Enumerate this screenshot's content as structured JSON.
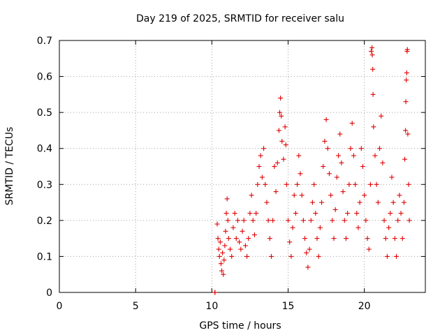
{
  "chart_data": {
    "type": "scatter",
    "title": "Day 219 of 2025, SRMTID for receiver salu",
    "xlabel": "GPS time / hours",
    "ylabel": "SRMTID / TECUs",
    "xlim": [
      0,
      24
    ],
    "ylim": [
      0,
      0.7
    ],
    "xticks": [
      0,
      5,
      10,
      15,
      20
    ],
    "xtick_labels": [
      "0",
      "5",
      "10",
      "15",
      "20"
    ],
    "yticks": [
      0,
      0.1,
      0.2,
      0.3,
      0.4,
      0.5,
      0.6,
      0.7
    ],
    "ytick_labels": [
      "0",
      "0.1",
      "0.2",
      "0.3",
      "0.4",
      "0.5",
      "0.6",
      "0.7"
    ],
    "grid": true,
    "marker": "+",
    "color": "#e00000",
    "series": [
      {
        "name": "SRMTID",
        "points": [
          [
            10.2,
            0.0
          ],
          [
            10.2,
            0.0
          ],
          [
            10.35,
            0.19
          ],
          [
            10.4,
            0.15
          ],
          [
            10.45,
            0.12
          ],
          [
            10.5,
            0.1
          ],
          [
            10.55,
            0.14
          ],
          [
            10.6,
            0.08
          ],
          [
            10.65,
            0.06
          ],
          [
            10.7,
            0.11
          ],
          [
            10.75,
            0.05
          ],
          [
            10.8,
            0.09
          ],
          [
            10.85,
            0.13
          ],
          [
            10.9,
            0.17
          ],
          [
            10.95,
            0.22
          ],
          [
            11.0,
            0.26
          ],
          [
            11.05,
            0.2
          ],
          [
            11.1,
            0.15
          ],
          [
            11.2,
            0.12
          ],
          [
            11.3,
            0.1
          ],
          [
            11.4,
            0.18
          ],
          [
            11.5,
            0.22
          ],
          [
            11.6,
            0.15
          ],
          [
            11.7,
            0.2
          ],
          [
            11.8,
            0.14
          ],
          [
            11.9,
            0.12
          ],
          [
            12.0,
            0.17
          ],
          [
            12.1,
            0.2
          ],
          [
            12.2,
            0.13
          ],
          [
            12.3,
            0.1
          ],
          [
            12.4,
            0.15
          ],
          [
            12.5,
            0.22
          ],
          [
            12.6,
            0.27
          ],
          [
            12.7,
            0.2
          ],
          [
            12.8,
            0.16
          ],
          [
            12.9,
            0.22
          ],
          [
            13.0,
            0.3
          ],
          [
            13.1,
            0.35
          ],
          [
            13.2,
            0.38
          ],
          [
            13.3,
            0.32
          ],
          [
            13.4,
            0.4
          ],
          [
            13.5,
            0.3
          ],
          [
            13.6,
            0.25
          ],
          [
            13.7,
            0.2
          ],
          [
            13.8,
            0.15
          ],
          [
            13.9,
            0.1
          ],
          [
            14.0,
            0.2
          ],
          [
            14.1,
            0.35
          ],
          [
            14.2,
            0.28
          ],
          [
            14.3,
            0.36
          ],
          [
            14.4,
            0.45
          ],
          [
            14.45,
            0.5
          ],
          [
            14.5,
            0.54
          ],
          [
            14.55,
            0.49
          ],
          [
            14.6,
            0.42
          ],
          [
            14.7,
            0.37
          ],
          [
            14.8,
            0.46
          ],
          [
            14.85,
            0.41
          ],
          [
            14.9,
            0.3
          ],
          [
            15.0,
            0.2
          ],
          [
            15.1,
            0.14
          ],
          [
            15.2,
            0.1
          ],
          [
            15.3,
            0.18
          ],
          [
            15.4,
            0.27
          ],
          [
            15.5,
            0.22
          ],
          [
            15.6,
            0.3
          ],
          [
            15.7,
            0.38
          ],
          [
            15.8,
            0.33
          ],
          [
            15.9,
            0.27
          ],
          [
            16.0,
            0.2
          ],
          [
            16.1,
            0.15
          ],
          [
            16.2,
            0.11
          ],
          [
            16.3,
            0.07
          ],
          [
            16.4,
            0.12
          ],
          [
            16.5,
            0.2
          ],
          [
            16.6,
            0.25
          ],
          [
            16.7,
            0.3
          ],
          [
            16.8,
            0.22
          ],
          [
            16.9,
            0.15
          ],
          [
            17.0,
            0.1
          ],
          [
            17.1,
            0.18
          ],
          [
            17.2,
            0.25
          ],
          [
            17.3,
            0.35
          ],
          [
            17.4,
            0.42
          ],
          [
            17.5,
            0.48
          ],
          [
            17.6,
            0.4
          ],
          [
            17.7,
            0.33
          ],
          [
            17.8,
            0.27
          ],
          [
            17.9,
            0.2
          ],
          [
            18.0,
            0.15
          ],
          [
            18.1,
            0.23
          ],
          [
            18.2,
            0.32
          ],
          [
            18.3,
            0.38
          ],
          [
            18.4,
            0.44
          ],
          [
            18.5,
            0.36
          ],
          [
            18.6,
            0.28
          ],
          [
            18.7,
            0.2
          ],
          [
            18.8,
            0.15
          ],
          [
            18.9,
            0.22
          ],
          [
            19.0,
            0.3
          ],
          [
            19.1,
            0.4
          ],
          [
            19.2,
            0.47
          ],
          [
            19.3,
            0.38
          ],
          [
            19.4,
            0.3
          ],
          [
            19.5,
            0.22
          ],
          [
            19.6,
            0.18
          ],
          [
            19.7,
            0.25
          ],
          [
            19.8,
            0.4
          ],
          [
            19.9,
            0.35
          ],
          [
            20.0,
            0.27
          ],
          [
            20.1,
            0.2
          ],
          [
            20.2,
            0.15
          ],
          [
            20.3,
            0.12
          ],
          [
            20.4,
            0.3
          ],
          [
            20.45,
            0.67
          ],
          [
            20.5,
            0.68
          ],
          [
            20.52,
            0.66
          ],
          [
            20.55,
            0.62
          ],
          [
            20.57,
            0.55
          ],
          [
            20.6,
            0.46
          ],
          [
            20.7,
            0.38
          ],
          [
            20.8,
            0.3
          ],
          [
            20.9,
            0.25
          ],
          [
            21.0,
            0.4
          ],
          [
            21.1,
            0.49
          ],
          [
            21.2,
            0.36
          ],
          [
            21.3,
            0.2
          ],
          [
            21.4,
            0.15
          ],
          [
            21.5,
            0.1
          ],
          [
            21.6,
            0.18
          ],
          [
            21.7,
            0.22
          ],
          [
            21.8,
            0.32
          ],
          [
            21.9,
            0.25
          ],
          [
            22.0,
            0.15
          ],
          [
            22.1,
            0.1
          ],
          [
            22.2,
            0.2
          ],
          [
            22.3,
            0.27
          ],
          [
            22.4,
            0.22
          ],
          [
            22.5,
            0.15
          ],
          [
            22.6,
            0.25
          ],
          [
            22.65,
            0.37
          ],
          [
            22.7,
            0.45
          ],
          [
            22.72,
            0.53
          ],
          [
            22.75,
            0.59
          ],
          [
            22.78,
            0.61
          ],
          [
            22.8,
            0.67
          ],
          [
            22.82,
            0.675
          ],
          [
            22.85,
            0.44
          ],
          [
            22.9,
            0.3
          ],
          [
            22.95,
            0.2
          ]
        ]
      }
    ]
  }
}
